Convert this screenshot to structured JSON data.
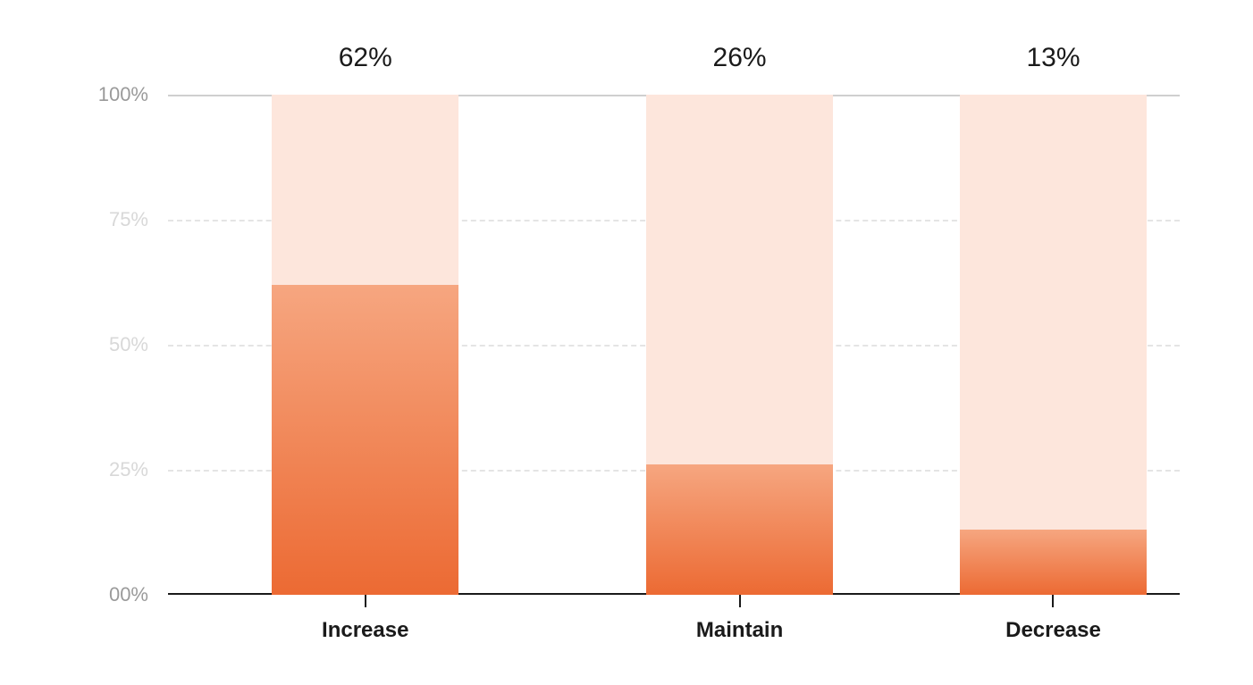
{
  "chart": {
    "type": "bar",
    "background_color": "#ffffff",
    "ylim": [
      0,
      100
    ],
    "y_ticks": [
      {
        "value": 100,
        "label": "100%",
        "color": "#9a9a9a",
        "line_style": "solid",
        "line_color": "#cfcfcf"
      },
      {
        "value": 75,
        "label": "75%",
        "color": "#d8d8d8",
        "line_style": "dashed",
        "line_color": "#e4e4e4"
      },
      {
        "value": 50,
        "label": "50%",
        "color": "#d8d8d8",
        "line_style": "dashed",
        "line_color": "#e4e4e4"
      },
      {
        "value": 25,
        "label": "25%",
        "color": "#d8d8d8",
        "line_style": "dashed",
        "line_color": "#e4e4e4"
      },
      {
        "value": 0,
        "label": "00%",
        "color": "#9a9a9a",
        "line_style": "axis",
        "line_color": "#1a1a1a"
      }
    ],
    "axis_color": "#1a1a1a",
    "bars": [
      {
        "category": "Increase",
        "value": 62,
        "value_label": "62%",
        "center_pct": 19.5,
        "width_pct": 18.5
      },
      {
        "category": "Maintain",
        "value": 26,
        "value_label": "26%",
        "center_pct": 56.5,
        "width_pct": 18.5
      },
      {
        "category": "Decrease",
        "value": 13,
        "value_label": "13%",
        "center_pct": 87.5,
        "width_pct": 18.5
      }
    ],
    "bar_bg_color": "#fde6dc",
    "bar_fill_gradient_top": "#f6a680",
    "bar_fill_gradient_bottom": "#ec6a33",
    "value_label_fontsize": 30,
    "value_label_color": "#1a1a1a",
    "x_label_fontsize": 24,
    "x_label_fontweight": 700,
    "x_label_color": "#1a1a1a",
    "y_label_fontsize": 22
  }
}
